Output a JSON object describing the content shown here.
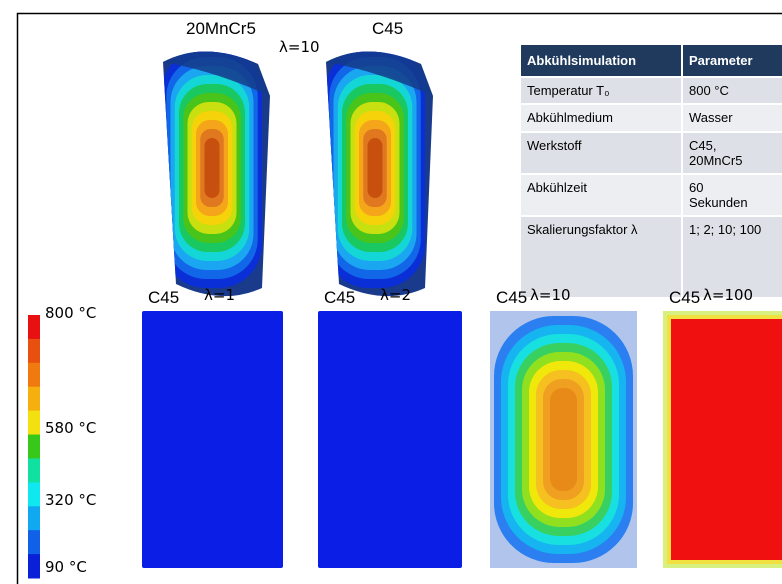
{
  "top": {
    "labels": [
      "20MnCr5",
      "C45"
    ],
    "lambda": "λ=10"
  },
  "table": {
    "header": [
      "Abkühlsimulation",
      "Parameter"
    ],
    "rows": [
      [
        "Temperatur T₀",
        "800 °C"
      ],
      [
        "Abkühlmedium",
        "Wasser"
      ],
      [
        "Werkstoff",
        "C45,\n20MnCr5"
      ],
      [
        "Abkühlzeit",
        "60\nSekunden"
      ],
      [
        "Skalierungsfaktor λ",
        "1; 2; 10; 100"
      ]
    ]
  },
  "legend": {
    "labels": [
      "800 °C",
      "580 °C",
      "320 °C",
      "90 °C"
    ]
  },
  "panels": [
    {
      "material": "C45",
      "lambda": "λ=1"
    },
    {
      "material": "C45",
      "lambda": "λ=2"
    },
    {
      "material": "C45",
      "lambda": "λ=10"
    },
    {
      "material": "C45",
      "lambda": "λ=100"
    }
  ]
}
